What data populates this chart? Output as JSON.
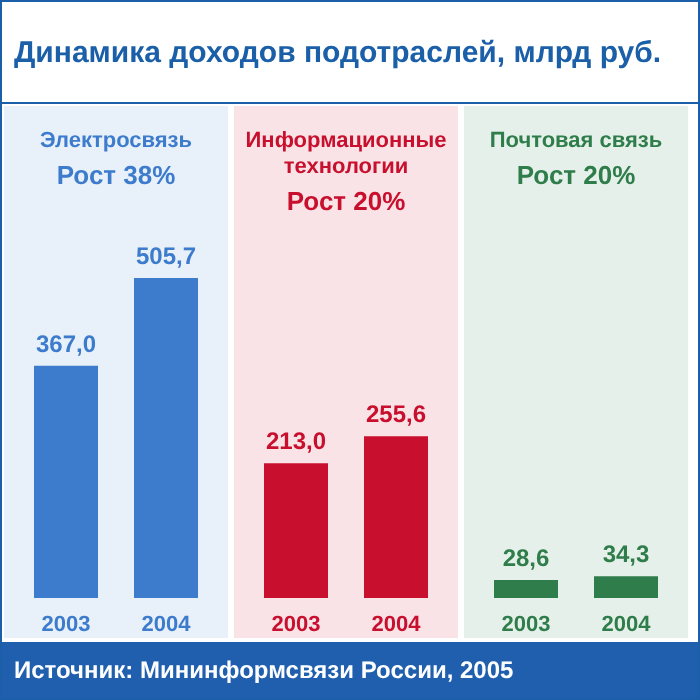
{
  "chart_data": [
    {
      "type": "other",
      "title": "Динамика доходов подотраслей, млрд руб.",
      "annotations": [
        "Источник: Мининформсвязи России, 2005"
      ]
    },
    {
      "type": "bar",
      "title": "Электросвязь",
      "subtitle": "Рост 38%",
      "categories": [
        "2003",
        "2004"
      ],
      "values": [
        367.0,
        505.7
      ],
      "value_labels": [
        "367,0",
        "505,7"
      ],
      "color": "#3d7ccc",
      "tick_labels": "x"
    },
    {
      "type": "bar",
      "title": "Информационные технологии",
      "subtitle": "Рост 20%",
      "categories": [
        "2003",
        "2004"
      ],
      "values": [
        213.0,
        255.6
      ],
      "value_labels": [
        "213,0",
        "255,6"
      ],
      "color": "#c8102e",
      "tick_labels": "x"
    },
    {
      "type": "bar",
      "title": "Почтовая связь",
      "subtitle": "Рост 20%",
      "categories": [
        "2003",
        "2004"
      ],
      "values": [
        28.6,
        34.3
      ],
      "value_labels": [
        "28,6",
        "34,3"
      ],
      "color": "#2e7d4a",
      "tick_labels": "x"
    }
  ]
}
